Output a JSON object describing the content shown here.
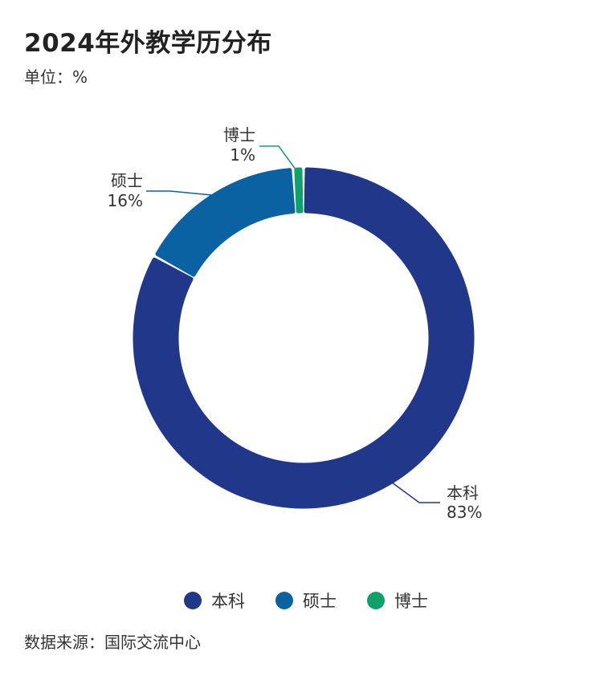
{
  "header": {
    "title": "2024年外教学历分布",
    "unit": "单位：%"
  },
  "footer": {
    "source": "数据来源：国际交流中心"
  },
  "chart_data": {
    "type": "pie",
    "style": "donut",
    "title": "2024年外教学历分布",
    "unit": "%",
    "categories": [
      "本科",
      "硕士",
      "博士"
    ],
    "values": [
      83,
      16,
      1
    ],
    "value_labels": [
      "83%",
      "16%",
      "1%"
    ],
    "colors": [
      "#21378a",
      "#0a62a3",
      "#12a06a"
    ],
    "legend": "bottom"
  }
}
